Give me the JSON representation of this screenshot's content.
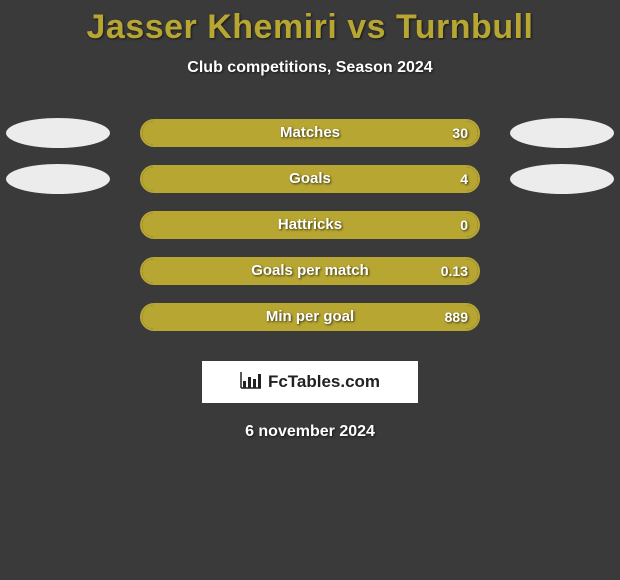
{
  "title": "Jasser Khemiri vs Turnbull",
  "subtitle": "Club competitions, Season 2024",
  "date_text": "6 november 2024",
  "logo_text": "FcTables.com",
  "colors": {
    "background": "#3a3a3a",
    "title_color": "#b8a632",
    "text_color": "#ffffff",
    "bar_fill": "#b8a632",
    "bar_border": "#b8a632",
    "oval_color": "#ececec",
    "logo_bg": "#ffffff",
    "logo_text_color": "#222222"
  },
  "typography": {
    "title_fontsize": 34,
    "title_weight": 800,
    "subtitle_fontsize": 16,
    "label_fontsize": 15,
    "value_fontsize": 14,
    "date_fontsize": 16
  },
  "layout": {
    "bar_track_width": 340,
    "bar_track_height": 28,
    "bar_border_radius": 14,
    "row_gap": 18,
    "oval_width": 104,
    "oval_height": 30
  },
  "rows": [
    {
      "label": "Matches",
      "value_text": "30",
      "fill_pct": 100,
      "show_ovals": true
    },
    {
      "label": "Goals",
      "value_text": "4",
      "fill_pct": 100,
      "show_ovals": true
    },
    {
      "label": "Hattricks",
      "value_text": "0",
      "fill_pct": 100,
      "show_ovals": false
    },
    {
      "label": "Goals per match",
      "value_text": "0.13",
      "fill_pct": 100,
      "show_ovals": false
    },
    {
      "label": "Min per goal",
      "value_text": "889",
      "fill_pct": 100,
      "show_ovals": false
    }
  ]
}
